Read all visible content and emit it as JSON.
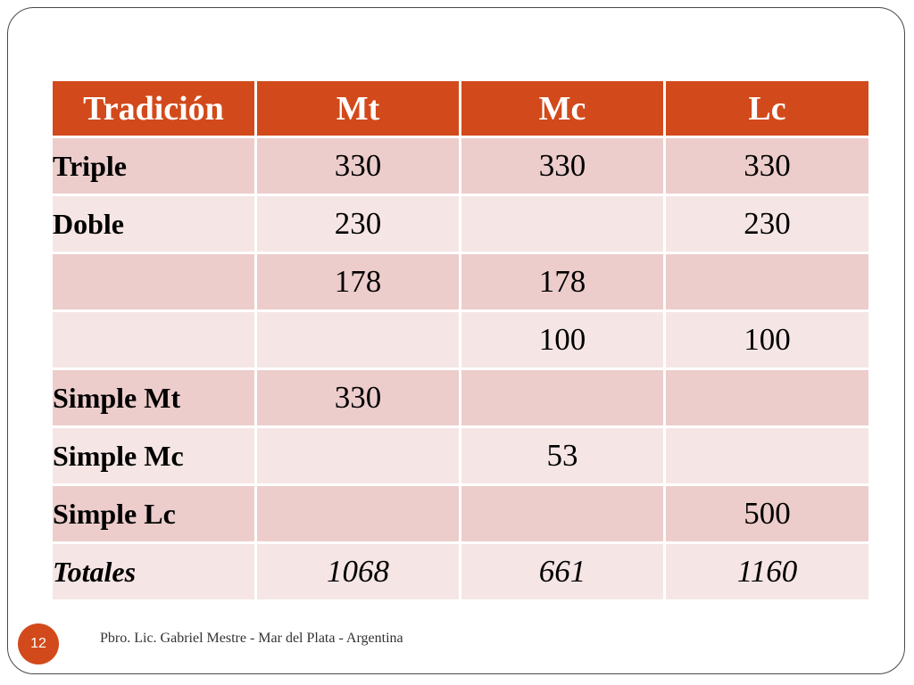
{
  "table": {
    "headers": [
      "Tradición",
      "Mt",
      "Mc",
      "Lc"
    ],
    "rows": [
      {
        "label": "Triple",
        "mt": "330",
        "mc": "330",
        "lc": "330"
      },
      {
        "label": "Doble",
        "mt": "230",
        "mc": "",
        "lc": "230"
      },
      {
        "label": "",
        "mt": "178",
        "mc": "178",
        "lc": ""
      },
      {
        "label": "",
        "mt": "",
        "mc": "100",
        "lc": "100"
      },
      {
        "label": "Simple Mt",
        "mt": "330",
        "mc": "",
        "lc": ""
      },
      {
        "label": "Simple Mc",
        "mt": "",
        "mc": "53",
        "lc": ""
      },
      {
        "label": "Simple Lc",
        "mt": "",
        "mc": "",
        "lc": "500"
      },
      {
        "label": "Totales",
        "mt": "1068",
        "mc": "661",
        "lc": "1160"
      }
    ]
  },
  "footer": {
    "page_number": "12",
    "text": "Pbro. Lic. Gabriel Mestre - Mar del Plata - Argentina"
  },
  "colors": {
    "header_bg": "#d24a1b",
    "row_odd": "#eccdcb",
    "row_even": "#f5e6e5",
    "badge_bg": "#d24a1b"
  }
}
